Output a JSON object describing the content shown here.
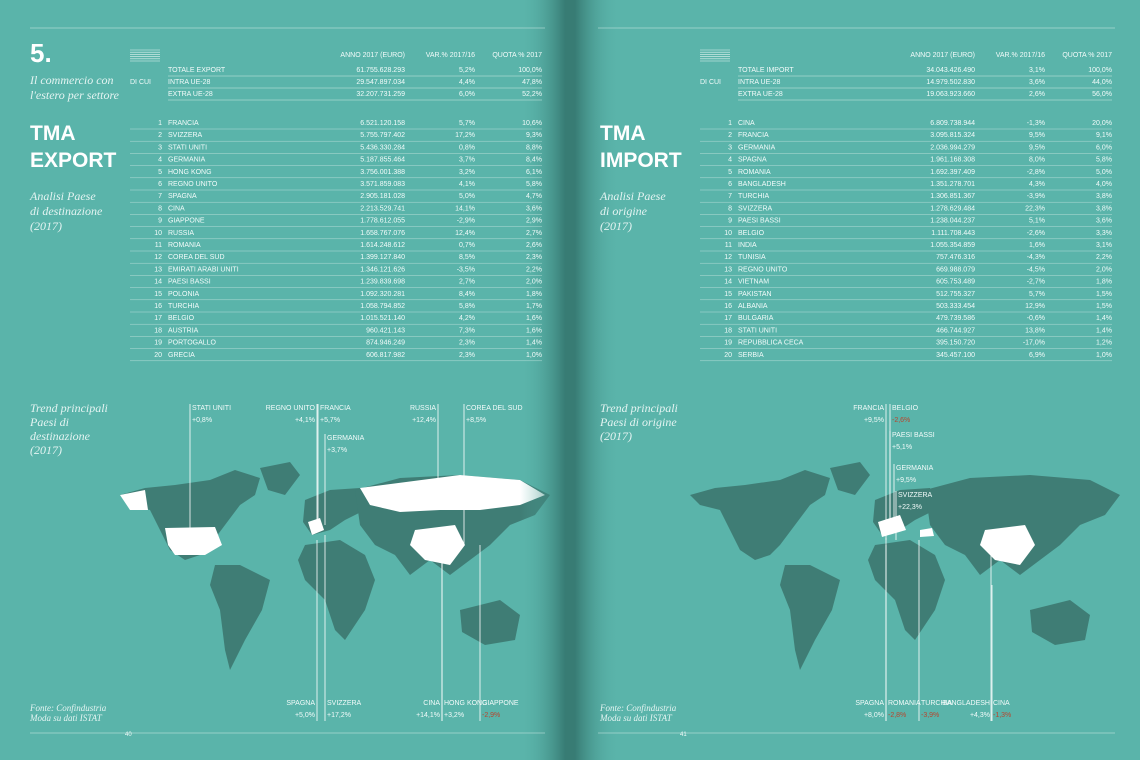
{
  "pages": [
    {
      "section_number": "5.",
      "subtitle": [
        "Il commercio con",
        "l'estero per settore"
      ],
      "title": [
        "TMA",
        "EXPORT"
      ],
      "description": [
        "Analisi Paese",
        "di destinazione",
        "(2017)"
      ],
      "table": {
        "columns": [
          "ANNO 2017 (EURO)",
          "VAR.% 2017/16",
          "QUOTA % 2017"
        ],
        "di_cui": "DI CUI",
        "totals": [
          [
            "TOTALE EXPORT",
            "61.755.628.293",
            "5,2%",
            "100,0%"
          ],
          [
            "INTRA UE-28",
            "29.547.897.034",
            "4,4%",
            "47,8%"
          ],
          [
            "EXTRA UE-28",
            "32.207.731.259",
            "6,0%",
            "52,2%"
          ]
        ],
        "rows": [
          [
            1,
            "FRANCIA",
            "6.521.120.158",
            "5,7%",
            "10,6%"
          ],
          [
            2,
            "SVIZZERA",
            "5.755.797.402",
            "17,2%",
            "9,3%"
          ],
          [
            3,
            "STATI UNITI",
            "5.436.330.284",
            "0,8%",
            "8,8%"
          ],
          [
            4,
            "GERMANIA",
            "5.187.855.464",
            "3,7%",
            "8,4%"
          ],
          [
            5,
            "HONG KONG",
            "3.756.001.388",
            "3,2%",
            "6,1%"
          ],
          [
            6,
            "REGNO UNITO",
            "3.571.859.083",
            "4,1%",
            "5,8%"
          ],
          [
            7,
            "SPAGNA",
            "2.905.181.028",
            "5,0%",
            "4,7%"
          ],
          [
            8,
            "CINA",
            "2.213.529.741",
            "14,1%",
            "3,6%"
          ],
          [
            9,
            "GIAPPONE",
            "1.778.612.055",
            "-2,9%",
            "2,9%"
          ],
          [
            10,
            "RUSSIA",
            "1.658.767.076",
            "12,4%",
            "2,7%"
          ],
          [
            11,
            "ROMANIA",
            "1.614.248.612",
            "0,7%",
            "2,6%"
          ],
          [
            12,
            "COREA DEL SUD",
            "1.399.127.840",
            "8,5%",
            "2,3%"
          ],
          [
            13,
            "EMIRATI ARABI UNITI",
            "1.346.121.626",
            "-3,5%",
            "2,2%"
          ],
          [
            14,
            "PAESI BASSI",
            "1.239.839.698",
            "2,7%",
            "2,0%"
          ],
          [
            15,
            "POLONIA",
            "1.092.320.281",
            "8,4%",
            "1,8%"
          ],
          [
            16,
            "TURCHIA",
            "1.058.794.852",
            "5,8%",
            "1,7%"
          ],
          [
            17,
            "BELGIO",
            "1.015.521.140",
            "4,2%",
            "1,6%"
          ],
          [
            18,
            "AUSTRIA",
            "960.421.143",
            "7,3%",
            "1,6%"
          ],
          [
            19,
            "PORTOGALLO",
            "874.946.249",
            "2,3%",
            "1,4%"
          ],
          [
            20,
            "GRECIA",
            "606.817.982",
            "2,3%",
            "1,0%"
          ]
        ]
      },
      "trend_title": [
        "Trend principali",
        "Paesi di",
        "destinazione",
        "(2017)"
      ],
      "trend_labels": [
        {
          "country": "STATI UNITI",
          "change": "+0,8%"
        },
        {
          "country": "REGNO UNITO",
          "change": "+4,1%"
        },
        {
          "country": "FRANCIA",
          "change": "+5,7%"
        },
        {
          "country": "GERMANIA",
          "change": "+3,7%"
        },
        {
          "country": "RUSSIA",
          "change": "+12,4%"
        },
        {
          "country": "COREA DEL SUD",
          "change": "+8,5%"
        },
        {
          "country": "SPAGNA",
          "change": "+5,0%"
        },
        {
          "country": "SVIZZERA",
          "change": "+17,2%"
        },
        {
          "country": "CINA",
          "change": "+14,1%"
        },
        {
          "country": "HONG KONG",
          "change": "+3,2%"
        },
        {
          "country": "GIAPPONE",
          "change": "-2,9%"
        }
      ],
      "source": [
        "Fonte: Confindustria",
        "Moda su dati ISTAT"
      ],
      "page_number": "40"
    },
    {
      "title": [
        "TMA",
        "IMPORT"
      ],
      "description": [
        "Analisi Paese",
        "di origine",
        "(2017)"
      ],
      "table": {
        "columns": [
          "ANNO 2017 (EURO)",
          "VAR.% 2017/16",
          "QUOTA % 2017"
        ],
        "di_cui": "DI CUI",
        "totals": [
          [
            "TOTALE IMPORT",
            "34.043.426.490",
            "3,1%",
            "100,0%"
          ],
          [
            "INTRA UE-28",
            "14.979.502.830",
            "3,6%",
            "44,0%"
          ],
          [
            "EXTRA UE-28",
            "19.063.923.660",
            "2,6%",
            "56,0%"
          ]
        ],
        "rows": [
          [
            1,
            "CINA",
            "6.809.738.944",
            "-1,3%",
            "20,0%"
          ],
          [
            2,
            "FRANCIA",
            "3.095.815.324",
            "9,5%",
            "9,1%"
          ],
          [
            3,
            "GERMANIA",
            "2.036.994.279",
            "9,5%",
            "6,0%"
          ],
          [
            4,
            "SPAGNA",
            "1.961.168.308",
            "8,0%",
            "5,8%"
          ],
          [
            5,
            "ROMANIA",
            "1.692.397.409",
            "-2,8%",
            "5,0%"
          ],
          [
            6,
            "BANGLADESH",
            "1.351.278.701",
            "4,3%",
            "4,0%"
          ],
          [
            7,
            "TURCHIA",
            "1.306.851.367",
            "-3,9%",
            "3,8%"
          ],
          [
            8,
            "SVIZZERA",
            "1.278.629.484",
            "22,3%",
            "3,8%"
          ],
          [
            9,
            "PAESI BASSI",
            "1.238.044.237",
            "5,1%",
            "3,6%"
          ],
          [
            10,
            "BELGIO",
            "1.111.708.443",
            "-2,6%",
            "3,3%"
          ],
          [
            11,
            "INDIA",
            "1.055.354.859",
            "1,6%",
            "3,1%"
          ],
          [
            12,
            "TUNISIA",
            "757.476.316",
            "-4,3%",
            "2,2%"
          ],
          [
            13,
            "REGNO UNITO",
            "669.988.079",
            "-4,5%",
            "2,0%"
          ],
          [
            14,
            "VIETNAM",
            "605.753.489",
            "-2,7%",
            "1,8%"
          ],
          [
            15,
            "PAKISTAN",
            "512.755.327",
            "5,7%",
            "1,5%"
          ],
          [
            16,
            "ALBANIA",
            "503.333.454",
            "12,9%",
            "1,5%"
          ],
          [
            17,
            "BULGARIA",
            "479.739.586",
            "-0,6%",
            "1,4%"
          ],
          [
            18,
            "STATI UNITI",
            "466.744.927",
            "13,8%",
            "1,4%"
          ],
          [
            19,
            "REPUBBLICA CECA",
            "395.150.720",
            "-17,0%",
            "1,2%"
          ],
          [
            20,
            "SERBIA",
            "345.457.100",
            "6,9%",
            "1,0%"
          ]
        ]
      },
      "trend_title": [
        "Trend principali",
        "Paesi di origine",
        "(2017)"
      ],
      "trend_labels": [
        {
          "country": "FRANCIA",
          "change": "+9,5%"
        },
        {
          "country": "BELGIO",
          "change": "-2,6%"
        },
        {
          "country": "PAESI BASSI",
          "change": "+5,1%"
        },
        {
          "country": "GERMANIA",
          "change": "+9,5%"
        },
        {
          "country": "SVIZZERA",
          "change": "+22,3%"
        },
        {
          "country": "SPAGNA",
          "change": "+8,0%"
        },
        {
          "country": "ROMANIA",
          "change": "-2,8%"
        },
        {
          "country": "TURCHIA",
          "change": "-3,9%"
        },
        {
          "country": "BANGLADESH",
          "change": "+4,3%"
        },
        {
          "country": "CINA",
          "change": "-1,3%"
        }
      ],
      "source": [
        "Fonte: Confindustria",
        "Moda su dati ISTAT"
      ],
      "page_number": "41"
    }
  ]
}
